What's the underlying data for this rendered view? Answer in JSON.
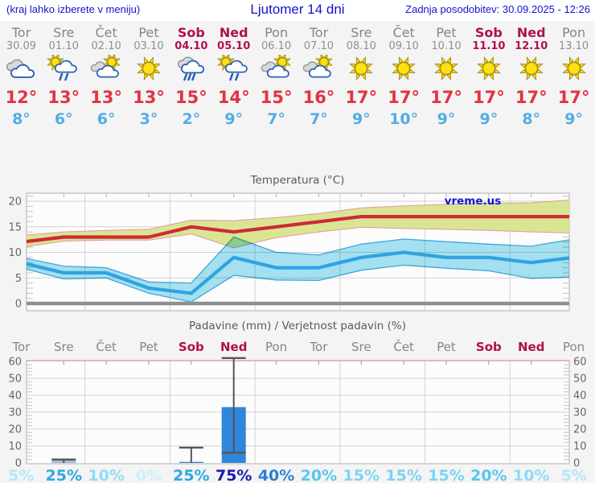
{
  "header": {
    "left_note": "(kraj lahko izberete v meniju)",
    "title": "Ljutomer 14 dni",
    "updated": "Zadnja posodobitev: 30.09.2025 - 12:26"
  },
  "watermark": "vreme.us",
  "forecast_days": [
    {
      "name": "Tor",
      "date": "30.09",
      "weekend": false,
      "icon": "cloudy",
      "tmax": "12°",
      "tmin": "8°"
    },
    {
      "name": "Sre",
      "date": "01.10",
      "weekend": false,
      "icon": "sun-cloud-rain",
      "tmax": "13°",
      "tmin": "6°"
    },
    {
      "name": "Čet",
      "date": "02.10",
      "weekend": false,
      "icon": "cloud-sun",
      "tmax": "13°",
      "tmin": "6°"
    },
    {
      "name": "Pet",
      "date": "03.10",
      "weekend": false,
      "icon": "sun",
      "tmax": "13°",
      "tmin": "3°"
    },
    {
      "name": "Sob",
      "date": "04.10",
      "weekend": true,
      "icon": "clouds-rain",
      "tmax": "15°",
      "tmin": "2°"
    },
    {
      "name": "Ned",
      "date": "05.10",
      "weekend": true,
      "icon": "sun-cloud-rain",
      "tmax": "14°",
      "tmin": "9°"
    },
    {
      "name": "Pon",
      "date": "06.10",
      "weekend": false,
      "icon": "cloud-sun",
      "tmax": "15°",
      "tmin": "7°"
    },
    {
      "name": "Tor",
      "date": "07.10",
      "weekend": false,
      "icon": "cloud-sun",
      "tmax": "16°",
      "tmin": "7°"
    },
    {
      "name": "Sre",
      "date": "08.10",
      "weekend": false,
      "icon": "sun",
      "tmax": "17°",
      "tmin": "9°"
    },
    {
      "name": "Čet",
      "date": "09.10",
      "weekend": false,
      "icon": "sun",
      "tmax": "17°",
      "tmin": "10°"
    },
    {
      "name": "Pet",
      "date": "10.10",
      "weekend": false,
      "icon": "sun",
      "tmax": "17°",
      "tmin": "9°"
    },
    {
      "name": "Sob",
      "date": "11.10",
      "weekend": true,
      "icon": "sun",
      "tmax": "17°",
      "tmin": "9°"
    },
    {
      "name": "Ned",
      "date": "12.10",
      "weekend": true,
      "icon": "sun",
      "tmax": "17°",
      "tmin": "8°"
    },
    {
      "name": "Pon",
      "date": "13.10",
      "weekend": false,
      "icon": "sun",
      "tmax": "17°",
      "tmin": "9°"
    }
  ],
  "chart_data": [
    {
      "type": "line",
      "title": "Temperatura (°C)",
      "x_categories": [
        "Tor",
        "Sre",
        "Čet",
        "Pet",
        "Sob",
        "Ned",
        "Pon",
        "Tor",
        "Sre",
        "Čet",
        "Pet",
        "Sob",
        "Ned",
        "Pon"
      ],
      "series": [
        {
          "name": "t_max",
          "values": [
            12,
            13,
            13,
            13,
            15,
            14,
            15,
            16,
            17,
            17,
            17,
            17,
            17,
            17
          ]
        },
        {
          "name": "t_max_band_upper",
          "values": [
            13.3,
            14.0,
            14.3,
            14.5,
            16.3,
            16.2,
            16.8,
            17.6,
            18.7,
            19.1,
            19.4,
            19.6,
            19.7,
            20.3
          ]
        },
        {
          "name": "t_max_band_lower",
          "values": [
            11.0,
            12.2,
            12.4,
            12.4,
            13.6,
            10.9,
            12.9,
            14.0,
            14.9,
            14.7,
            14.5,
            14.3,
            14.0,
            13.8
          ]
        },
        {
          "name": "t_min",
          "values": [
            8,
            6,
            6,
            3,
            2,
            9,
            7,
            7,
            9,
            10,
            9,
            9,
            8,
            9
          ]
        },
        {
          "name": "t_min_band_upper",
          "values": [
            9.0,
            7.3,
            7.0,
            4.2,
            4.0,
            13.0,
            10.0,
            9.5,
            11.6,
            12.6,
            12.1,
            11.6,
            11.2,
            12.6
          ]
        },
        {
          "name": "t_min_band_lower",
          "values": [
            7.0,
            4.8,
            5.0,
            2.0,
            0.3,
            5.5,
            4.6,
            4.5,
            6.5,
            7.5,
            6.9,
            6.4,
            4.9,
            5.2
          ]
        }
      ],
      "yticks": [
        0,
        5,
        10,
        15,
        20
      ],
      "ylim": [
        -1.4,
        21.6
      ],
      "grid": true,
      "legend": false
    },
    {
      "type": "bar",
      "title": "Padavine (mm) / Verjetnost padavin (%)",
      "x_categories": [
        "Tor",
        "Sre",
        "Čet",
        "Pet",
        "Sob",
        "Ned",
        "Pon",
        "Tor",
        "Sre",
        "Čet",
        "Pet",
        "Sob",
        "Ned",
        "Pon"
      ],
      "weekend": [
        false,
        false,
        false,
        false,
        true,
        true,
        false,
        false,
        false,
        false,
        false,
        true,
        true,
        false
      ],
      "values_mm": [
        0,
        1.8,
        0,
        0,
        0.6,
        33,
        0,
        0,
        0,
        0,
        0,
        0,
        0,
        0
      ],
      "whisker_max_mm": [
        0,
        2,
        0,
        0,
        9,
        62,
        0,
        0,
        0,
        0,
        0,
        0,
        0,
        0
      ],
      "whisker_low_mm": [
        0,
        0,
        0,
        0,
        0,
        6,
        0,
        0,
        0,
        0,
        0,
        0,
        0,
        0
      ],
      "bar_colors": [
        "",
        "#a3bcd9",
        "",
        "",
        "#2f86db",
        "#2f86db",
        "",
        "",
        "",
        "",
        "",
        "",
        "",
        ""
      ],
      "probabilities_pct": [
        5,
        25,
        10,
        0,
        25,
        75,
        40,
        20,
        15,
        15,
        15,
        20,
        10,
        5
      ],
      "probability_labels": [
        "5%",
        "25%",
        "10%",
        "0%",
        "25%",
        "75%",
        "40%",
        "20%",
        "15%",
        "15%",
        "15%",
        "20%",
        "10%",
        "5%"
      ],
      "probability_colors": [
        "#b4e8f9",
        "#2fa7e6",
        "#8edcf5",
        "#cbf0fb",
        "#2fa7e6",
        "#1a1ab5",
        "#2e7fd6",
        "#5ac6ee",
        "#7cd4f2",
        "#7cd4f2",
        "#7cd4f2",
        "#5ac6ee",
        "#8edcf5",
        "#b4e8f9"
      ],
      "yticks": [
        0,
        10,
        20,
        30,
        40,
        50,
        60
      ],
      "ylim": [
        0,
        60
      ]
    }
  ],
  "colors": {
    "header_blue": "#1313cf",
    "weekend": "#b0104e",
    "day_gray": "#858585",
    "tmax_red": "#e2333f",
    "tmin_blue": "#54ace2",
    "chart_text": "#5a5a5a",
    "axis_text": "#666666",
    "red_line": "#ce2936",
    "green_band": "#d9e593",
    "green_band_edge": "#e09a9a",
    "blue_line": "#2fa3e3",
    "cyan_band": "#a6e3f2",
    "cyan_band_edge": "#41a8e0",
    "grid": "#d2d2d2",
    "border": "#b0b0b0",
    "zero_line": "#8f8f8f",
    "precip_top": "#df8ba2",
    "whisker": "#565656",
    "plot_bg": "#fcfcfc",
    "page_bg": "#f4f4f4"
  }
}
